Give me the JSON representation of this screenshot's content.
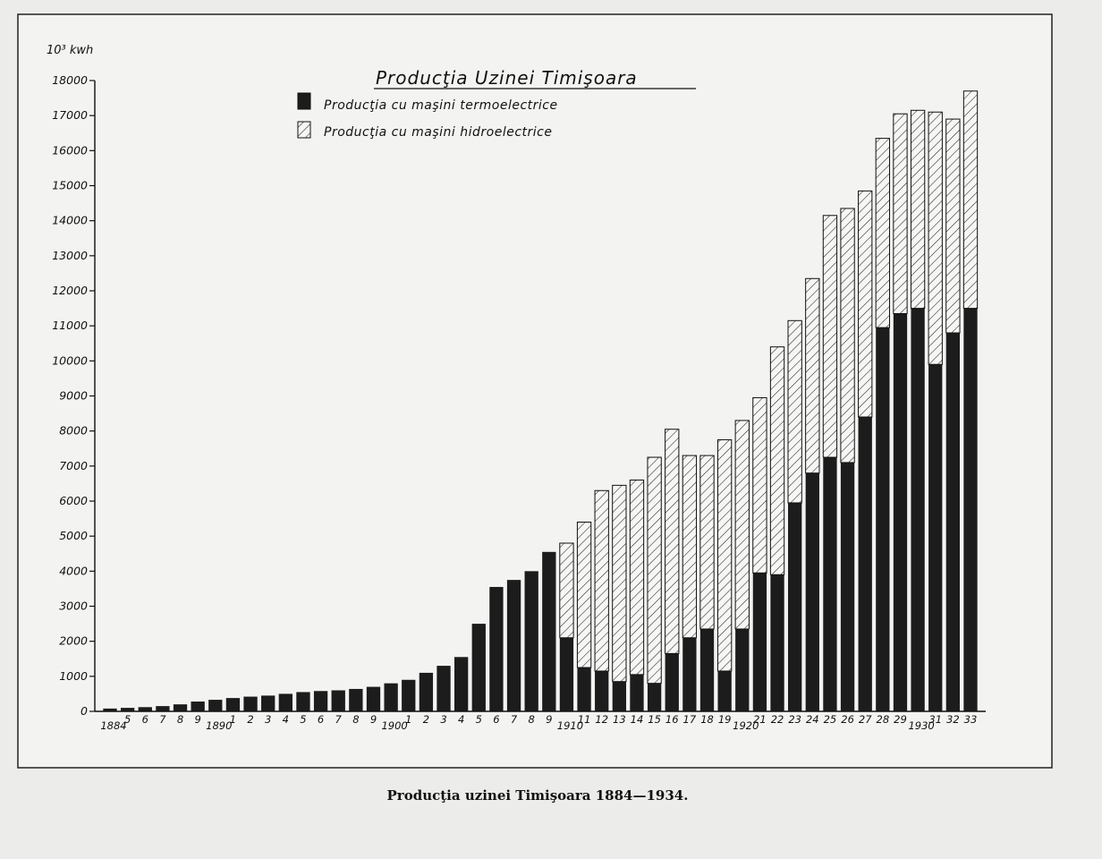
{
  "caption": "Producţia uzinei Timişoara 1884—1934.",
  "colors": {
    "thermo": "#1c1c1c",
    "hydro_stripe": "#222222",
    "background": "#ececea",
    "plot": "#f3f3f1"
  },
  "chart_data": {
    "type": "bar",
    "stacked": true,
    "title": "Producţia Uzinei Timişoara",
    "ylabel": "10³ kwh",
    "xlabel": "",
    "ylim": [
      0,
      18000
    ],
    "yticks": [
      0,
      1000,
      2000,
      3000,
      4000,
      5000,
      6000,
      7000,
      8000,
      9000,
      10000,
      11000,
      12000,
      13000,
      14000,
      15000,
      16000,
      17000,
      18000
    ],
    "ytick_labels": [
      "0",
      "1000",
      "2000",
      "3000",
      "4000",
      "5000",
      "6000",
      "7000",
      "8000",
      "9000",
      "10000",
      "11000",
      "12000",
      "13000",
      "14000",
      "15000",
      "16000",
      "17000",
      "18000"
    ],
    "legend_position": "top-left",
    "categories": [
      "1884",
      "5",
      "6",
      "7",
      "8",
      "9",
      "1890",
      "1",
      "2",
      "3",
      "4",
      "5",
      "6",
      "7",
      "8",
      "9",
      "1900",
      "1",
      "2",
      "3",
      "4",
      "5",
      "6",
      "7",
      "8",
      "9",
      "1910",
      "11",
      "12",
      "13",
      "14",
      "15",
      "16",
      "17",
      "18",
      "19",
      "1920",
      "21",
      "22",
      "23",
      "24",
      "25",
      "26",
      "27",
      "28",
      "29",
      "1930",
      "31",
      "32",
      "33"
    ],
    "series": [
      {
        "name": "Producţia cu maşini termoelectrice",
        "pattern": "solid",
        "values": [
          80,
          100,
          120,
          150,
          200,
          280,
          330,
          380,
          420,
          450,
          500,
          550,
          580,
          600,
          640,
          700,
          800,
          900,
          1100,
          1300,
          1550,
          2500,
          3550,
          3750,
          4000,
          4550,
          2100,
          1250,
          1150,
          850,
          1050,
          800,
          1650,
          2100,
          2350,
          1150,
          2350,
          3950,
          3900,
          5950,
          6800,
          7250,
          7100,
          8400,
          10950,
          11350,
          11500,
          9900,
          10800,
          11500
        ]
      },
      {
        "name": "Producţia cu maşini hidroelectrice",
        "pattern": "hatched",
        "values": [
          0,
          0,
          0,
          0,
          0,
          0,
          0,
          0,
          0,
          0,
          0,
          0,
          0,
          0,
          0,
          0,
          0,
          0,
          0,
          0,
          0,
          0,
          0,
          0,
          0,
          0,
          2700,
          4150,
          5150,
          5600,
          5550,
          6450,
          6400,
          5200,
          4950,
          6600,
          5950,
          5000,
          6500,
          5200,
          5550,
          6900,
          7250,
          6450,
          5400,
          5700,
          5650,
          7200,
          6100,
          6200
        ]
      }
    ]
  }
}
